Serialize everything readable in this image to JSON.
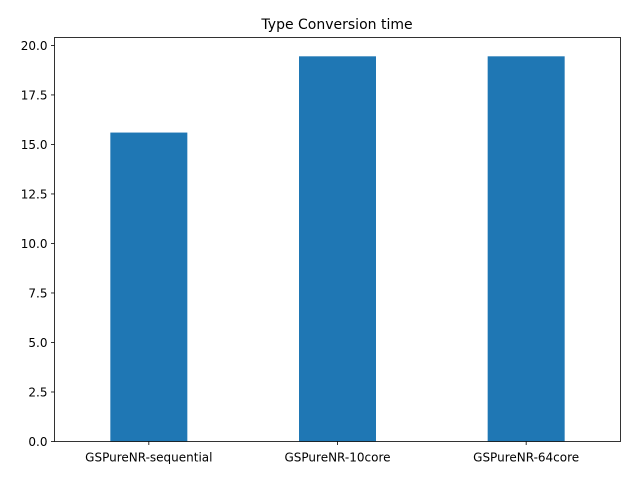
{
  "chart_data": {
    "type": "bar",
    "title": "Type Conversion time",
    "xlabel": "",
    "ylabel": "",
    "categories": [
      "GSPureNR-sequential",
      "GSPureNR-10core",
      "GSPureNR-64core"
    ],
    "values": [
      15.6,
      19.45,
      19.45
    ],
    "ylim": [
      0,
      20.4
    ],
    "yticks": [
      0.0,
      2.5,
      5.0,
      7.5,
      10.0,
      12.5,
      15.0,
      17.5,
      20.0
    ],
    "ytick_labels": [
      "0.0",
      "2.5",
      "5.0",
      "7.5",
      "10.0",
      "12.5",
      "15.0",
      "17.5",
      "20.0"
    ],
    "bar_color": "#1f77b4",
    "grid": false,
    "legend": false
  }
}
